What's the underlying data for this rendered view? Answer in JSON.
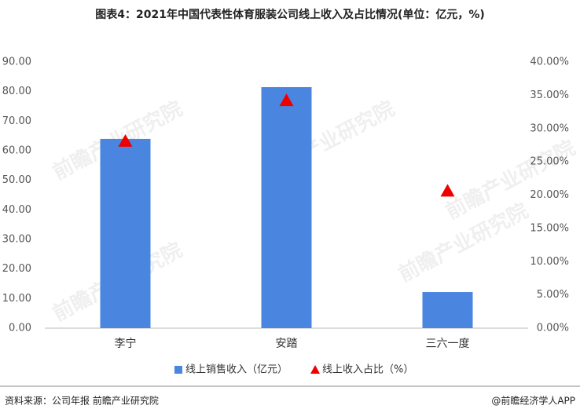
{
  "chart_data": {
    "type": "bar_line",
    "title": "图表4：2021年中国代表性体育服装公司线上收入及占比情况(单位：亿元，%)",
    "categories": [
      "李宁",
      "安踏",
      "三六一度"
    ],
    "series": [
      {
        "name": "线上销售收入（亿元）",
        "color": "#4a86e0",
        "type": "bar",
        "values": [
          64,
          81.5,
          12.2
        ]
      },
      {
        "name": "线上收入占比（%）",
        "color": "#ee0000",
        "type": "marker",
        "axis": "y2",
        "values": [
          28.1,
          34.2,
          20.6
        ]
      }
    ],
    "ylim": [
      0,
      90
    ],
    "yticks": [
      {
        "value": 0,
        "label": "0.00"
      },
      {
        "value": 10,
        "label": "10.00"
      },
      {
        "value": 20,
        "label": "20.00"
      },
      {
        "value": 30,
        "label": "30.00"
      },
      {
        "value": 40,
        "label": "40.00"
      },
      {
        "value": 50,
        "label": "50.00"
      },
      {
        "value": 60,
        "label": "60.00"
      },
      {
        "value": 70,
        "label": "70.00"
      },
      {
        "value": 80,
        "label": "80.00"
      },
      {
        "value": 90,
        "label": "90.00"
      }
    ],
    "y2lim": [
      0,
      40
    ],
    "y2ticks": [
      {
        "value": 0,
        "label": "0.00%"
      },
      {
        "value": 5,
        "label": "5.00%"
      },
      {
        "value": 10,
        "label": "10.00%"
      },
      {
        "value": 15,
        "label": "15.00%"
      },
      {
        "value": 20,
        "label": "20.00%"
      },
      {
        "value": 25,
        "label": "25.00%"
      },
      {
        "value": 30,
        "label": "30.00%"
      },
      {
        "value": 35,
        "label": "35.00%"
      },
      {
        "value": 40,
        "label": "40.00%"
      }
    ],
    "grid": false,
    "legend": "bottom",
    "source": "资料来源：公司年报 前瞻产业研究院",
    "credit": "@前瞻经济学人APP",
    "watermark": "前瞻产业研究院"
  }
}
